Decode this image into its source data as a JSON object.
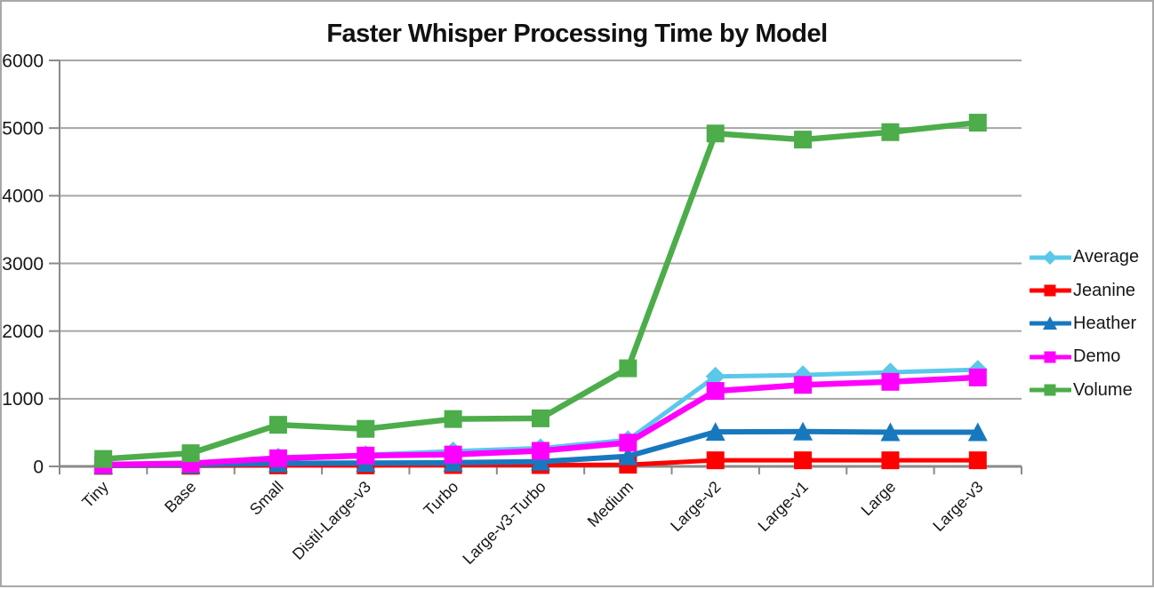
{
  "window": {
    "background": "#FFFFFF",
    "border_color": "#A8A8A8"
  },
  "chart_data": {
    "type": "line",
    "title": "Faster Whisper Processing Time by Model",
    "categories": [
      "Tiny",
      "Base",
      "Small",
      "Distil-Large-v3",
      "Turbo",
      "Large-v3-Turbo",
      "Medium",
      "Large-v2",
      "Large-v1",
      "Large",
      "Large-v3"
    ],
    "series": [
      {
        "name": "Average",
        "color": "#5BC8EA",
        "marker": "diamond",
        "line_width": 5,
        "values": [
          30,
          50,
          135,
          170,
          225,
          270,
          390,
          1330,
          1350,
          1390,
          1430
        ]
      },
      {
        "name": "Jeanine",
        "color": "#FF0000",
        "marker": "square",
        "line_width": 5,
        "values": [
          8,
          10,
          15,
          15,
          20,
          20,
          25,
          90,
          90,
          90,
          90
        ]
      },
      {
        "name": "Heather",
        "color": "#1878BE",
        "marker": "triangle",
        "line_width": 6,
        "values": [
          15,
          25,
          45,
          50,
          55,
          70,
          150,
          510,
          515,
          505,
          505
        ]
      },
      {
        "name": "Demo",
        "color": "#FF00FF",
        "marker": "square",
        "line_width": 6.5,
        "values": [
          25,
          45,
          120,
          160,
          175,
          230,
          350,
          1115,
          1205,
          1250,
          1315
        ]
      },
      {
        "name": "Volume",
        "color": "#4CAD4A",
        "marker": "square",
        "line_width": 6.5,
        "values": [
          110,
          195,
          615,
          555,
          700,
          710,
          1450,
          4920,
          4830,
          4940,
          5080
        ]
      }
    ],
    "ylim": [
      0,
      6000
    ],
    "ytick_step": 1000,
    "ytick_labels": [
      "0",
      "1000",
      "2000",
      "3000",
      "4000",
      "5000",
      "6000"
    ],
    "grid": true,
    "legend_position": "right",
    "axis_style": {
      "grid_color": "#A6A6A6",
      "axis_color": "#8A8A8A",
      "label_color": "#171717"
    }
  }
}
